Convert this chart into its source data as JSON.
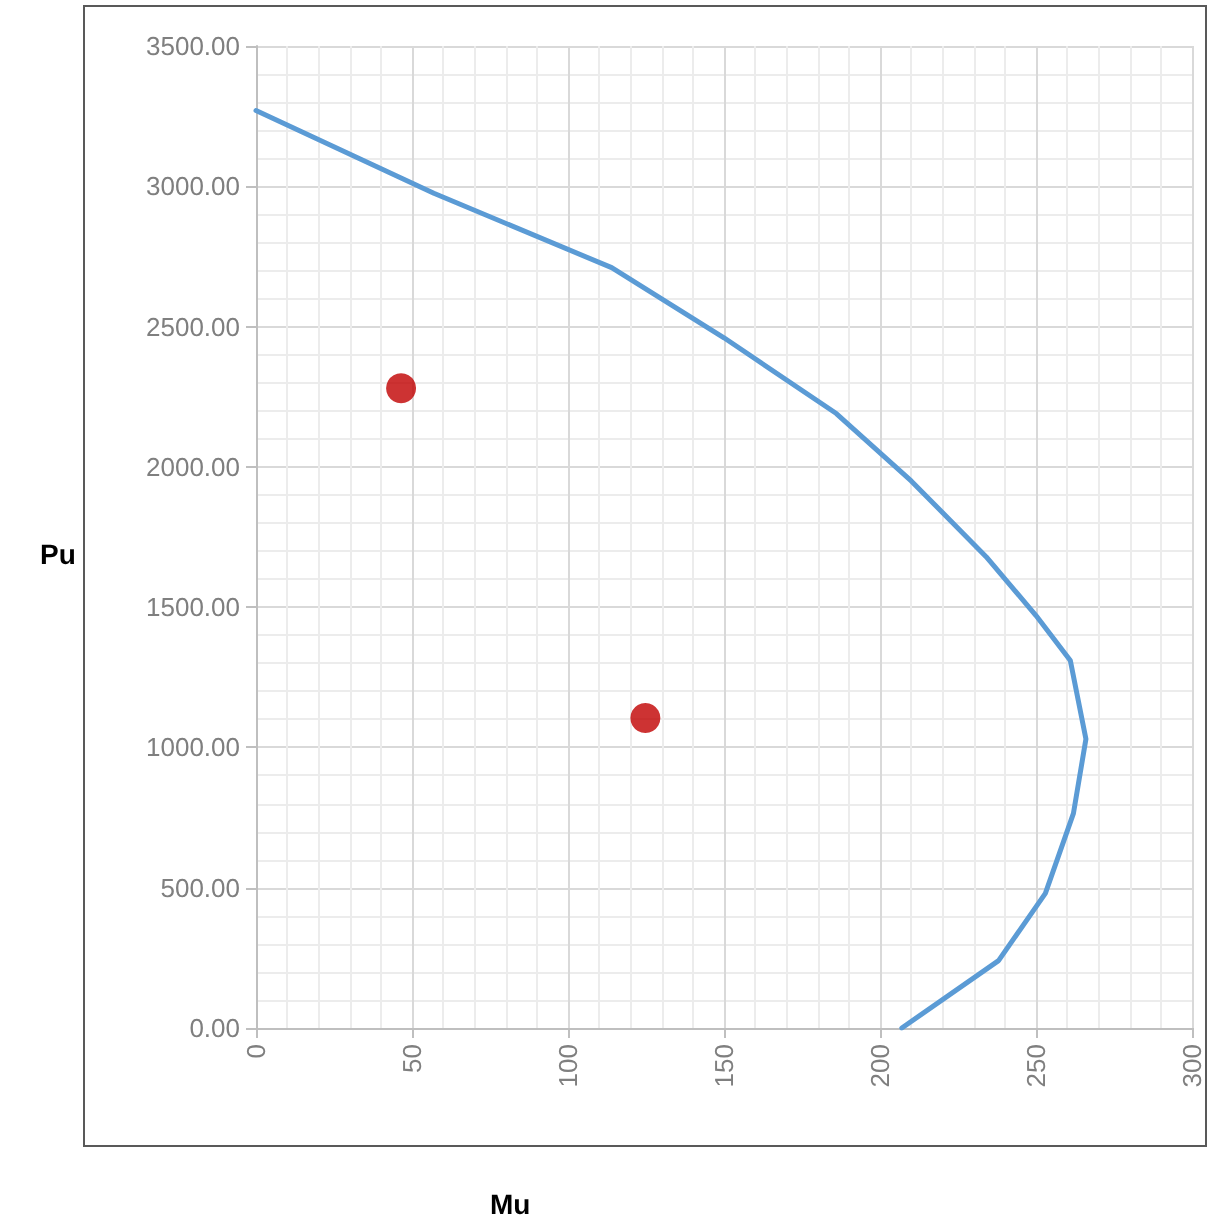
{
  "chart_data": {
    "type": "line",
    "xlabel": "Mu",
    "ylabel": "Pu",
    "xlim": [
      0,
      300
    ],
    "xticks": [
      0,
      50,
      100,
      150,
      200,
      250,
      300
    ],
    "ylim": [
      0,
      3500
    ],
    "yticks": [
      {
        "value": 0,
        "label": "0.00"
      },
      {
        "value": 500,
        "label": "500.00"
      },
      {
        "value": 1000,
        "label": "1000.00"
      },
      {
        "value": 1500,
        "label": "1500.00"
      },
      {
        "value": 2000,
        "label": "2000.00"
      },
      {
        "value": 2500,
        "label": "2500.00"
      },
      {
        "value": 3000,
        "label": "3000.00"
      },
      {
        "value": 3500,
        "label": "3500.00"
      }
    ],
    "grid": true,
    "series": [
      {
        "color": "#5b9bd5",
        "marker": "none",
        "line_style": "solid",
        "x": [
          0,
          57,
          114,
          150,
          186,
          210,
          234,
          250,
          261,
          266,
          262,
          253,
          238,
          207
        ],
        "values": [
          3270,
          2975,
          2710,
          2460,
          2190,
          1950,
          1680,
          1470,
          1310,
          1030,
          765,
          480,
          240,
          0
        ]
      },
      {
        "type": "scatter",
        "color": "#c00000",
        "marker": "circle",
        "x": [
          46.5,
          124.8
        ],
        "values": [
          2280,
          1105
        ]
      }
    ]
  }
}
